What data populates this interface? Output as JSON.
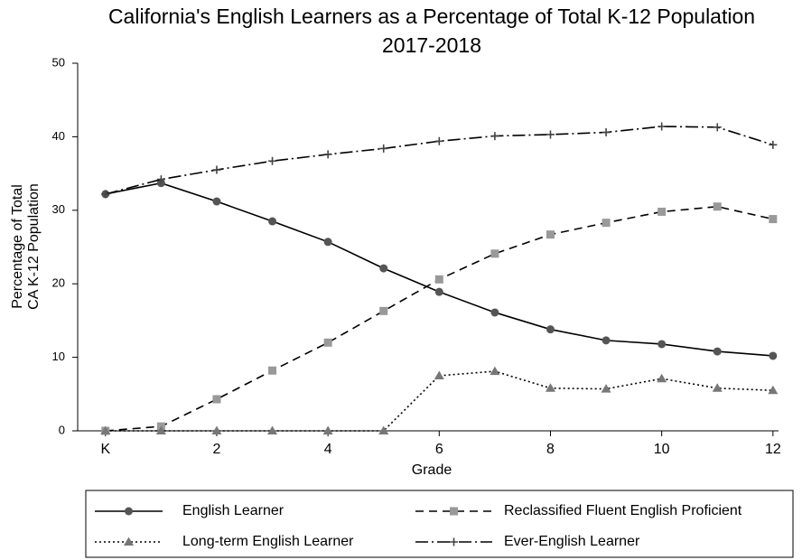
{
  "chart_data": {
    "type": "line",
    "title": "California's English Learners as a Percentage of Total K-12 Population",
    "subtitle": "2017-2018",
    "xlabel": "Grade",
    "ylabel": [
      "Percentage of Total",
      "CA K-12 Population"
    ],
    "x": [
      0,
      1,
      2,
      3,
      4,
      5,
      6,
      7,
      8,
      9,
      10,
      11,
      12
    ],
    "xlim": [
      -0.5,
      12.1
    ],
    "xticks": [
      {
        "value": 0,
        "label": "K"
      },
      2,
      4,
      6,
      8,
      10,
      12
    ],
    "ylim": [
      0,
      50
    ],
    "yticks": [
      0,
      10,
      20,
      30,
      40,
      50
    ],
    "grid": false,
    "legend": "bottom",
    "series": [
      {
        "name": "English Learner",
        "color": "#000000",
        "marker_color": "#555555",
        "marker": "circle",
        "dash": "none",
        "values": [
          32.2,
          33.7,
          31.2,
          28.5,
          25.7,
          22.1,
          18.9,
          16.1,
          13.8,
          12.3,
          11.8,
          10.8,
          10.2
        ]
      },
      {
        "name": "Reclassified Fluent English Proficient",
        "color": "#000000",
        "marker_color": "#999999",
        "marker": "square",
        "dash": "9,6",
        "values": [
          0,
          0.6,
          4.3,
          8.2,
          12.0,
          16.3,
          20.6,
          24.1,
          26.7,
          28.3,
          29.8,
          30.5,
          28.8
        ]
      },
      {
        "name": "Long-term English Learner",
        "color": "#000000",
        "marker_color": "#777777",
        "marker": "triangle",
        "dash": "2,3",
        "values": [
          0,
          0,
          0,
          0,
          0,
          0,
          7.5,
          8.1,
          5.8,
          5.7,
          7.1,
          5.8,
          5.5
        ]
      },
      {
        "name": "Ever-English Learner",
        "color": "#000000",
        "marker_color": "#444444",
        "marker": "plus",
        "dash": "14,4,2,4",
        "values": [
          32.2,
          34.2,
          35.5,
          36.7,
          37.6,
          38.4,
          39.4,
          40.1,
          40.3,
          40.6,
          41.4,
          41.3,
          38.9
        ]
      }
    ]
  }
}
